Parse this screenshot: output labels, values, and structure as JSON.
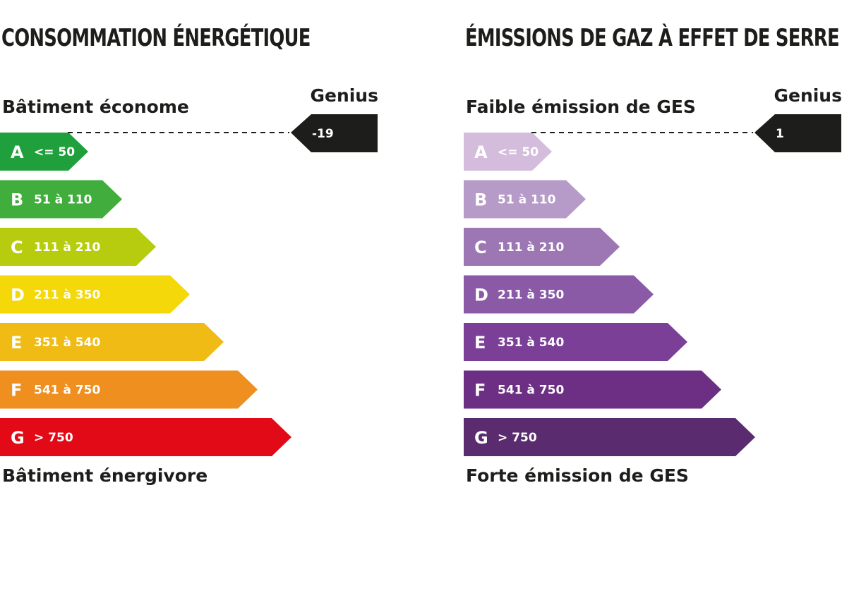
{
  "panels": [
    {
      "id": "energy",
      "title": "CONSOMMATION ÉNERGÉTIQUE",
      "top_label": "Bâtiment économe",
      "bottom_label": "Bâtiment énergivore",
      "marker": {
        "caption": "Genius",
        "value": "-19",
        "class": "A"
      },
      "classes": [
        {
          "letter": "A",
          "range": "<= 50",
          "color": "#1fa03c"
        },
        {
          "letter": "B",
          "range": "51 à 110",
          "color": "#40ad3c"
        },
        {
          "letter": "C",
          "range": "111 à 210",
          "color": "#b7cc0e"
        },
        {
          "letter": "D",
          "range": "211 à 350",
          "color": "#f4d80a"
        },
        {
          "letter": "E",
          "range": "351 à 540",
          "color": "#f0bb14"
        },
        {
          "letter": "F",
          "range": "541 à 750",
          "color": "#ef8f1f"
        },
        {
          "letter": "G",
          "range": "> 750",
          "color": "#e20a16"
        }
      ]
    },
    {
      "id": "ges",
      "title": "ÉMISSIONS DE GAZ À EFFET DE SERRE",
      "top_label": "Faible émission de GES",
      "bottom_label": "Forte émission de GES",
      "marker": {
        "caption": "Genius",
        "value": "1",
        "class": "A"
      },
      "classes": [
        {
          "letter": "A",
          "range": "<= 50",
          "color": "#d4bcdc"
        },
        {
          "letter": "B",
          "range": "51 à 110",
          "color": "#b69ac7"
        },
        {
          "letter": "C",
          "range": "111 à 210",
          "color": "#9c77b3"
        },
        {
          "letter": "D",
          "range": "211 à 350",
          "color": "#8a5aa7"
        },
        {
          "letter": "E",
          "range": "351 à 540",
          "color": "#7b3f98"
        },
        {
          "letter": "F",
          "range": "541 à 750",
          "color": "#6c2f84"
        },
        {
          "letter": "G",
          "range": "> 750",
          "color": "#5a2b6e"
        }
      ]
    }
  ],
  "chart_data": [
    {
      "type": "bar",
      "title": "CONSOMMATION ÉNERGÉTIQUE",
      "categories": [
        "A",
        "B",
        "C",
        "D",
        "E",
        "F",
        "G"
      ],
      "ranges": [
        "<= 50",
        "51 à 110",
        "111 à 210",
        "211 à 350",
        "351 à 540",
        "541 à 750",
        "> 750"
      ],
      "marker_value": "-19",
      "marker_class": "A"
    },
    {
      "type": "bar",
      "title": "ÉMISSIONS DE GAZ À EFFET DE SERRE",
      "categories": [
        "A",
        "B",
        "C",
        "D",
        "E",
        "F",
        "G"
      ],
      "ranges": [
        "<= 50",
        "51 à 110",
        "111 à 210",
        "211 à 350",
        "351 à 540",
        "541 à 750",
        "> 750"
      ],
      "marker_value": "1",
      "marker_class": "A"
    }
  ]
}
